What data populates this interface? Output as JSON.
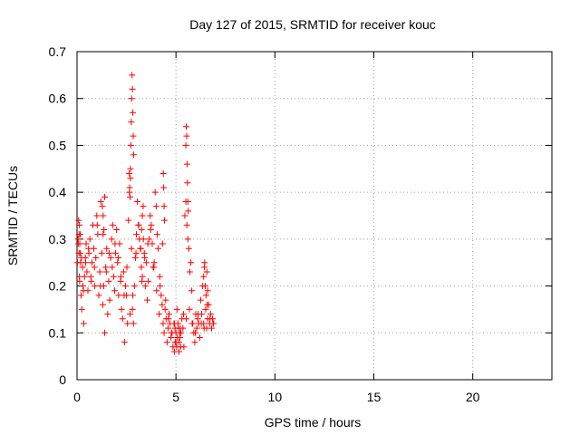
{
  "chart_data": {
    "type": "scatter",
    "title": "Day 127 of 2015, SRMTID for receiver kouc",
    "xlabel": "GPS time / hours",
    "ylabel": "SRMTID / TECUs",
    "xlim": [
      0,
      24
    ],
    "ylim": [
      0,
      0.7
    ],
    "xticks": [
      0,
      5,
      10,
      15,
      20
    ],
    "yticks": [
      0,
      0.1,
      0.2,
      0.3,
      0.4,
      0.5,
      0.6,
      0.7
    ],
    "ytick_labels": [
      "0",
      "0.1",
      "0.2",
      "0.3",
      "0.4",
      "0.5",
      "0.6",
      "0.7"
    ],
    "grid": true,
    "marker": "+",
    "color": "#ff0000",
    "x": [
      0.02,
      0.05,
      0.08,
      0.1,
      0.13,
      0.16,
      0.2,
      0.24,
      0.28,
      0.3,
      0.34,
      0.38,
      0.42,
      0.46,
      0.5,
      0.55,
      0.6,
      0.65,
      0.7,
      0.75,
      0.8,
      0.85,
      0.9,
      0.95,
      1.0,
      1.05,
      1.1,
      1.15,
      1.2,
      1.25,
      1.3,
      1.35,
      1.4,
      1.45,
      1.5,
      1.55,
      1.6,
      1.65,
      1.7,
      1.75,
      1.8,
      1.85,
      1.9,
      1.95,
      2.0,
      2.05,
      2.1,
      2.15,
      2.2,
      2.25,
      2.3,
      2.35,
      2.4,
      2.45,
      2.5,
      2.55,
      2.6,
      2.65,
      2.7,
      2.75,
      2.8,
      2.85,
      2.9,
      2.95,
      3.0,
      3.05,
      3.1,
      3.15,
      3.2,
      3.25,
      3.3,
      3.35,
      3.4,
      3.45,
      3.5,
      3.55,
      3.6,
      3.65,
      3.7,
      3.75,
      3.8,
      3.85,
      3.9,
      3.95,
      4.0,
      4.05,
      4.1,
      4.15,
      4.2,
      4.25,
      4.3,
      4.35,
      4.4,
      4.45,
      4.5,
      4.55,
      4.6,
      4.65,
      4.7,
      4.75,
      4.8,
      4.85,
      4.9,
      4.95,
      5.0,
      5.05,
      5.1,
      5.15,
      5.2,
      5.25,
      5.3,
      5.35,
      5.4,
      5.45,
      5.5,
      5.55,
      5.6,
      5.65,
      5.7,
      5.75,
      5.8,
      5.85,
      5.9,
      5.95,
      6.0,
      6.05,
      6.1,
      6.15,
      6.2,
      6.25,
      6.3,
      6.35,
      6.4,
      6.45,
      6.5,
      6.55,
      6.6,
      6.65,
      6.7,
      6.75,
      6.8,
      6.85,
      6.9,
      0.06,
      0.12,
      0.22,
      0.32,
      0.44,
      0.58,
      0.72,
      0.88,
      1.02,
      1.18,
      1.32,
      1.48,
      1.62,
      1.78,
      1.92,
      2.08,
      2.22,
      2.38,
      2.52,
      2.68,
      2.82,
      2.98,
      3.12,
      3.28,
      3.42,
      3.58,
      3.72,
      3.88,
      4.02,
      4.18,
      4.32,
      4.48,
      4.62,
      4.78,
      4.92,
      5.08,
      5.22,
      5.38,
      5.52,
      5.68,
      5.82,
      5.98,
      6.12,
      6.28,
      6.42,
      6.58,
      6.72,
      6.88,
      2.72,
      2.74,
      2.76,
      2.78,
      2.8,
      2.82,
      2.84,
      2.86,
      5.5,
      5.52,
      5.54,
      5.56,
      5.58,
      5.6,
      5.62,
      2.64,
      2.66,
      2.68,
      2.7,
      4.36,
      4.38,
      4.4,
      4.42,
      0.1,
      0.12,
      0.14,
      0.16,
      0.18,
      1.28,
      1.32,
      1.36,
      1.4,
      3.22,
      3.26,
      3.3,
      3.34,
      4.92,
      4.96,
      5.0,
      5.04,
      5.08,
      5.12,
      5.16,
      5.2,
      5.24,
      6.4,
      6.44,
      6.48,
      6.52,
      6.56,
      6.6
    ],
    "y": [
      0.25,
      0.3,
      0.34,
      0.27,
      0.21,
      0.31,
      0.18,
      0.15,
      0.24,
      0.2,
      0.12,
      0.22,
      0.26,
      0.29,
      0.23,
      0.19,
      0.27,
      0.3,
      0.22,
      0.25,
      0.33,
      0.28,
      0.2,
      0.26,
      0.35,
      0.31,
      0.18,
      0.23,
      0.38,
      0.27,
      0.16,
      0.2,
      0.1,
      0.24,
      0.28,
      0.14,
      0.21,
      0.17,
      0.26,
      0.3,
      0.33,
      0.22,
      0.19,
      0.27,
      0.32,
      0.25,
      0.18,
      0.29,
      0.21,
      0.15,
      0.13,
      0.23,
      0.08,
      0.2,
      0.18,
      0.12,
      0.34,
      0.4,
      0.45,
      0.28,
      0.15,
      0.12,
      0.2,
      0.26,
      0.31,
      0.38,
      0.33,
      0.3,
      0.28,
      0.24,
      0.22,
      0.3,
      0.27,
      0.2,
      0.25,
      0.17,
      0.21,
      0.3,
      0.35,
      0.33,
      0.29,
      0.24,
      0.25,
      0.4,
      0.37,
      0.31,
      0.28,
      0.14,
      0.2,
      0.18,
      0.16,
      0.12,
      0.1,
      0.15,
      0.13,
      0.08,
      0.11,
      0.14,
      0.12,
      0.09,
      0.1,
      0.07,
      0.12,
      0.11,
      0.08,
      0.15,
      0.12,
      0.06,
      0.09,
      0.1,
      0.13,
      0.11,
      0.07,
      0.35,
      0.38,
      0.33,
      0.3,
      0.28,
      0.23,
      0.25,
      0.19,
      0.12,
      0.1,
      0.08,
      0.14,
      0.11,
      0.13,
      0.12,
      0.09,
      0.17,
      0.14,
      0.2,
      0.12,
      0.25,
      0.15,
      0.11,
      0.13,
      0.16,
      0.12,
      0.14,
      0.11,
      0.13,
      0.12,
      0.29,
      0.22,
      0.26,
      0.19,
      0.25,
      0.28,
      0.21,
      0.24,
      0.33,
      0.2,
      0.31,
      0.23,
      0.27,
      0.24,
      0.29,
      0.26,
      0.22,
      0.18,
      0.24,
      0.14,
      0.18,
      0.27,
      0.33,
      0.21,
      0.26,
      0.29,
      0.32,
      0.24,
      0.19,
      0.22,
      0.29,
      0.17,
      0.13,
      0.1,
      0.12,
      0.09,
      0.11,
      0.14,
      0.13,
      0.15,
      0.12,
      0.1,
      0.14,
      0.12,
      0.11,
      0.16,
      0.13,
      0.12,
      0.5,
      0.55,
      0.6,
      0.65,
      0.62,
      0.57,
      0.52,
      0.48,
      0.5,
      0.54,
      0.52,
      0.46,
      0.42,
      0.38,
      0.36,
      0.44,
      0.41,
      0.39,
      0.43,
      0.44,
      0.41,
      0.37,
      0.34,
      0.31,
      0.33,
      0.29,
      0.27,
      0.25,
      0.37,
      0.35,
      0.32,
      0.39,
      0.28,
      0.32,
      0.35,
      0.37,
      0.06,
      0.08,
      0.1,
      0.07,
      0.09,
      0.11,
      0.08,
      0.1,
      0.07,
      0.22,
      0.24,
      0.2,
      0.18,
      0.23,
      0.19
    ]
  }
}
